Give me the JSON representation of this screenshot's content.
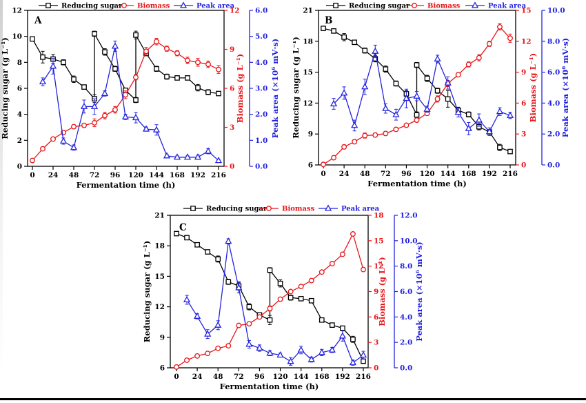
{
  "figure": {
    "xlabel": "Fermentation time (h)",
    "legend": [
      "Reducing sugar",
      "Biomass",
      "Peak area"
    ],
    "colors": {
      "reducing_sugar": "#000000",
      "biomass": "#e81418",
      "peak_area": "#2222e0"
    }
  },
  "chart_data": [
    {
      "type": "line",
      "panel": "A",
      "xlabel": "Fermentation time (h)",
      "x_range": [
        0,
        216
      ],
      "x_ticks": [
        0,
        24,
        48,
        72,
        96,
        120,
        144,
        168,
        192,
        216
      ],
      "axes": {
        "left": {
          "label": "Reducing sugar (g L⁻¹)",
          "range": [
            0,
            12
          ],
          "ticks": [
            0,
            2,
            4,
            6,
            8,
            10,
            12
          ],
          "decimals": 0,
          "color": "#000000"
        },
        "right_biomass": {
          "label": "Biomass (g L⁻¹)",
          "range": [
            0,
            12
          ],
          "ticks": [
            0,
            3,
            6,
            9,
            12
          ],
          "decimals": 0,
          "color": "#e81418"
        },
        "right_peak": {
          "label": "Peak area (×10⁶ mV·s)",
          "range": [
            0,
            6
          ],
          "ticks": [
            0,
            1,
            2,
            3,
            4,
            5,
            6
          ],
          "decimals": 1,
          "color": "#2222e0"
        }
      },
      "series": [
        {
          "name": "Reducing sugar",
          "axis": "left",
          "marker": "square",
          "color": "#000000",
          "x": [
            0,
            12,
            24,
            36,
            48,
            60,
            72,
            72,
            84,
            96,
            108,
            120,
            120,
            132,
            144,
            156,
            168,
            180,
            192,
            204,
            216
          ],
          "y": [
            9.8,
            8.4,
            8.25,
            8.0,
            6.7,
            6.1,
            5.2,
            10.2,
            8.8,
            7.5,
            5.85,
            5.1,
            10.1,
            8.7,
            7.5,
            6.9,
            6.8,
            6.8,
            6.05,
            5.7,
            5.6
          ],
          "err": [
            0.15,
            0.45,
            0.35,
            0.2,
            0.25,
            0.15,
            0.3,
            0.2,
            0.25,
            0.2,
            0.15,
            0.2,
            0.3,
            0.2,
            0.2,
            0.2,
            0.1,
            0.1,
            0.25,
            0.2,
            0.15
          ]
        },
        {
          "name": "Biomass",
          "axis": "right_biomass",
          "marker": "circle",
          "color": "#e81418",
          "x": [
            0,
            12,
            24,
            36,
            48,
            60,
            72,
            84,
            96,
            108,
            120,
            132,
            144,
            156,
            168,
            180,
            192,
            204,
            216
          ],
          "y": [
            0.45,
            1.35,
            2.1,
            2.6,
            3.05,
            3.15,
            3.35,
            3.9,
            4.35,
            5.5,
            6.85,
            8.85,
            9.6,
            9.05,
            8.7,
            8.15,
            8.0,
            7.85,
            7.45
          ],
          "err": [
            0.1,
            0.1,
            0.15,
            0.15,
            0.15,
            0.15,
            0.3,
            0.25,
            0.25,
            0.3,
            0.2,
            0.3,
            0.25,
            0.2,
            0.2,
            0.25,
            0.3,
            0.25,
            0.3
          ]
        },
        {
          "name": "Peak area",
          "axis": "right_peak",
          "marker": "triangle",
          "color": "#2222e0",
          "x": [
            12,
            24,
            36,
            48,
            60,
            72,
            84,
            96,
            108,
            120,
            132,
            144,
            156,
            168,
            180,
            192,
            204,
            216
          ],
          "y": [
            3.25,
            3.85,
            0.97,
            0.72,
            2.3,
            2.3,
            2.8,
            4.62,
            1.9,
            1.87,
            1.43,
            1.4,
            0.4,
            0.35,
            0.35,
            0.35,
            0.58,
            0.22
          ],
          "err": [
            0.15,
            0.3,
            0.12,
            0.1,
            0.25,
            0.3,
            0.1,
            0.2,
            0.1,
            0.2,
            0.08,
            0.2,
            0.05,
            0.05,
            0.05,
            0.08,
            0.1,
            0.05
          ]
        }
      ]
    },
    {
      "type": "line",
      "panel": "B",
      "xlabel": "Fermentation time (h)",
      "x_range": [
        0,
        216
      ],
      "x_ticks": [
        0,
        24,
        48,
        72,
        96,
        120,
        144,
        168,
        192,
        216
      ],
      "axes": {
        "left": {
          "label": "Reducing sugar (g L⁻¹)",
          "range": [
            6,
            21
          ],
          "ticks": [
            6,
            9,
            12,
            15,
            18,
            21
          ],
          "decimals": 0,
          "color": "#000000"
        },
        "right_biomass": {
          "label": "Biomass (g L⁻¹)",
          "range": [
            0,
            15
          ],
          "ticks": [
            0,
            3,
            6,
            9,
            12,
            15
          ],
          "decimals": 0,
          "color": "#e81418"
        },
        "right_peak": {
          "label": "Peak area (×10⁶ mV·s)",
          "range": [
            0,
            10
          ],
          "ticks": [
            0,
            2,
            4,
            6,
            8,
            10
          ],
          "decimals": 1,
          "color": "#2222e0"
        }
      },
      "series": [
        {
          "name": "Reducing sugar",
          "axis": "left",
          "marker": "square",
          "color": "#000000",
          "x": [
            0,
            12,
            24,
            36,
            48,
            60,
            72,
            84,
            96,
            108,
            108,
            120,
            132,
            144,
            156,
            168,
            180,
            192,
            204,
            216
          ],
          "y": [
            19.25,
            19.0,
            18.4,
            17.9,
            17.1,
            16.3,
            15.3,
            13.9,
            12.9,
            10.85,
            15.7,
            14.4,
            13.2,
            12.4,
            11.3,
            10.9,
            9.7,
            9.2,
            7.7,
            7.3
          ],
          "err": [
            0.1,
            0.2,
            0.35,
            0.15,
            0.25,
            0.3,
            0.3,
            0.25,
            0.3,
            0.3,
            0.25,
            0.3,
            0.25,
            0.8,
            0.3,
            0.25,
            0.3,
            0.2,
            0.3,
            0.2
          ]
        },
        {
          "name": "Biomass",
          "axis": "right_biomass",
          "marker": "circle",
          "color": "#e81418",
          "x": [
            0,
            12,
            24,
            36,
            48,
            60,
            72,
            84,
            96,
            108,
            120,
            132,
            144,
            156,
            168,
            180,
            192,
            204,
            216
          ],
          "y": [
            0.05,
            0.7,
            1.75,
            2.25,
            2.85,
            2.9,
            3.05,
            3.45,
            3.85,
            4.35,
            5.0,
            6.4,
            7.9,
            8.75,
            9.75,
            10.4,
            11.75,
            13.4,
            12.3
          ],
          "err": [
            0.05,
            0.1,
            0.2,
            0.2,
            0.25,
            0.2,
            0.2,
            0.15,
            0.15,
            0.2,
            0.15,
            0.3,
            0.3,
            0.2,
            0.25,
            0.3,
            0.25,
            0.3,
            0.4
          ]
        },
        {
          "name": "Peak area",
          "axis": "right_peak",
          "marker": "triangle",
          "color": "#2222e0",
          "x": [
            12,
            24,
            36,
            48,
            60,
            72,
            84,
            96,
            108,
            120,
            132,
            144,
            156,
            168,
            180,
            192,
            204,
            216
          ],
          "y": [
            3.95,
            4.65,
            2.55,
            5.05,
            7.35,
            3.65,
            3.25,
            4.3,
            4.45,
            3.6,
            6.85,
            5.3,
            3.4,
            2.35,
            2.9,
            2.15,
            3.45,
            3.2
          ],
          "err": [
            0.35,
            0.4,
            0.35,
            0.5,
            0.4,
            0.3,
            0.35,
            0.6,
            0.3,
            0.2,
            0.25,
            0.4,
            0.3,
            0.4,
            0.4,
            0.25,
            0.25,
            0.2
          ]
        }
      ]
    },
    {
      "type": "line",
      "panel": "C",
      "xlabel": "Fermentation time (h)",
      "x_range": [
        0,
        216
      ],
      "x_ticks": [
        0,
        24,
        48,
        72,
        96,
        120,
        144,
        168,
        192,
        216
      ],
      "axes": {
        "left": {
          "label": "Reducing sugar (g L⁻¹)",
          "range": [
            6,
            21
          ],
          "ticks": [
            6,
            9,
            12,
            15,
            18,
            21
          ],
          "decimals": 0,
          "color": "#000000"
        },
        "right_biomass": {
          "label": "Biomass (g L⁻¹)",
          "range": [
            0,
            18
          ],
          "ticks": [
            0,
            3,
            6,
            9,
            12,
            15,
            18
          ],
          "decimals": 0,
          "color": "#e81418"
        },
        "right_peak": {
          "label": "Peak area (×10⁶ mV·s)",
          "range": [
            0,
            12
          ],
          "ticks": [
            0,
            2,
            4,
            6,
            8,
            10,
            12
          ],
          "decimals": 1,
          "color": "#2222e0"
        }
      },
      "series": [
        {
          "name": "Reducing sugar",
          "axis": "left",
          "marker": "square",
          "color": "#000000",
          "x": [
            0,
            12,
            24,
            36,
            48,
            60,
            72,
            84,
            96,
            108,
            108,
            120,
            132,
            144,
            156,
            168,
            180,
            192,
            204,
            216
          ],
          "y": [
            19.2,
            18.8,
            18.1,
            17.4,
            16.7,
            14.45,
            14.05,
            12.0,
            11.2,
            10.7,
            15.6,
            14.3,
            12.9,
            12.8,
            12.6,
            10.7,
            10.2,
            9.9,
            8.8,
            6.65
          ],
          "err": [
            0.1,
            0.2,
            0.2,
            0.15,
            0.3,
            0.25,
            0.4,
            0.3,
            0.2,
            0.45,
            0.25,
            0.35,
            0.25,
            0.2,
            0.2,
            0.15,
            0.2,
            0.15,
            0.3,
            0.15
          ]
        },
        {
          "name": "Biomass",
          "axis": "right_biomass",
          "marker": "circle",
          "color": "#e81418",
          "x": [
            0,
            12,
            24,
            36,
            48,
            60,
            72,
            84,
            96,
            108,
            120,
            132,
            144,
            156,
            168,
            180,
            192,
            204,
            216
          ],
          "y": [
            0.1,
            0.9,
            1.4,
            1.7,
            2.3,
            2.6,
            5.0,
            5.2,
            6.0,
            7.0,
            8.1,
            9.0,
            9.6,
            10.3,
            11.3,
            12.3,
            13.4,
            15.8,
            11.6
          ],
          "err": [
            0.05,
            0.08,
            0.08,
            0.08,
            0.1,
            0.1,
            0.15,
            0.15,
            0.15,
            0.3,
            0.15,
            0.15,
            0.15,
            0.15,
            0.15,
            0.15,
            0.15,
            0.2,
            0.2
          ]
        },
        {
          "name": "Peak area",
          "axis": "right_peak",
          "marker": "triangle",
          "color": "#2222e0",
          "x": [
            12,
            24,
            36,
            48,
            60,
            72,
            84,
            96,
            108,
            120,
            132,
            144,
            156,
            168,
            180,
            192,
            204,
            216
          ],
          "y": [
            5.35,
            4.05,
            2.65,
            3.35,
            9.95,
            6.3,
            1.85,
            1.55,
            1.15,
            1.0,
            0.5,
            1.4,
            0.65,
            1.2,
            1.4,
            2.5,
            0.4,
            1.0
          ],
          "err": [
            0.35,
            0.2,
            0.35,
            0.35,
            0.2,
            0.4,
            0.3,
            0.25,
            0.2,
            0.15,
            0.3,
            0.3,
            0.2,
            0.25,
            0.2,
            0.4,
            0.2,
            0.3
          ]
        }
      ]
    }
  ]
}
